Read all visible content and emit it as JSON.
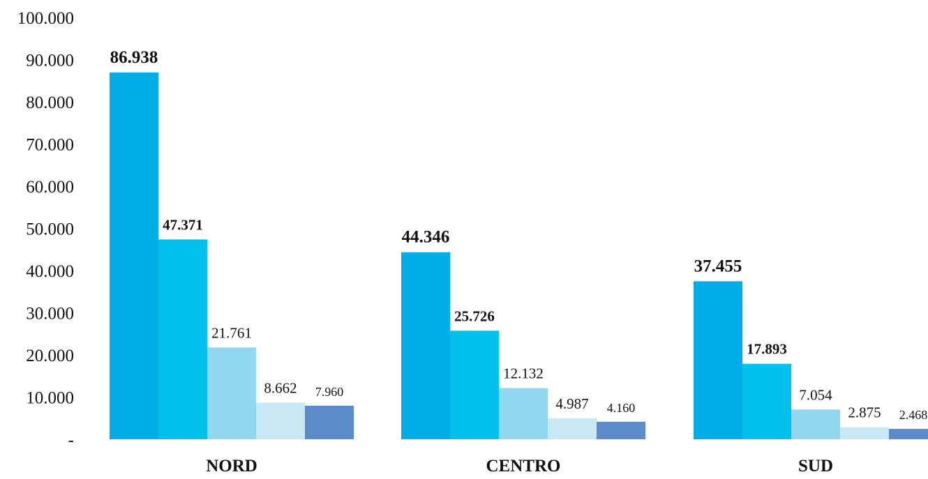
{
  "chart_data": {
    "type": "bar",
    "title": "",
    "xlabel": "",
    "ylabel": "",
    "ylim": [
      0,
      100000
    ],
    "grid": false,
    "legend": "none",
    "y_ticks": [
      {
        "value": 0,
        "label": "-"
      },
      {
        "value": 10000,
        "label": "10.000"
      },
      {
        "value": 20000,
        "label": "20.000"
      },
      {
        "value": 30000,
        "label": "30.000"
      },
      {
        "value": 40000,
        "label": "40.000"
      },
      {
        "value": 50000,
        "label": "50.000"
      },
      {
        "value": 60000,
        "label": "60.000"
      },
      {
        "value": 70000,
        "label": "70.000"
      },
      {
        "value": 80000,
        "label": "80.000"
      },
      {
        "value": 90000,
        "label": "90.000"
      },
      {
        "value": 100000,
        "label": "100.000"
      }
    ],
    "categories": [
      "NORD",
      "CENTRO",
      "SUD"
    ],
    "series": [
      {
        "color": "#00ADE6",
        "values": [
          86938,
          44346,
          37455
        ],
        "labels": [
          "86.938",
          "44.346",
          "37.455"
        ]
      },
      {
        "color": "#00C0EE",
        "values": [
          47371,
          25726,
          17893
        ],
        "labels": [
          "47.371",
          "25.726",
          "17.893"
        ]
      },
      {
        "color": "#92D6F0",
        "values": [
          21761,
          12132,
          7054
        ],
        "labels": [
          "21.761",
          "12.132",
          "7.054"
        ]
      },
      {
        "color": "#C8E8F4",
        "values": [
          8662,
          4987,
          2875
        ],
        "labels": [
          "8.662",
          "4.987",
          "2.875"
        ]
      },
      {
        "color": "#5B8BCB",
        "values": [
          7960,
          4160,
          2468
        ],
        "labels": [
          "7.960",
          "4.160",
          "2.468"
        ]
      }
    ]
  }
}
